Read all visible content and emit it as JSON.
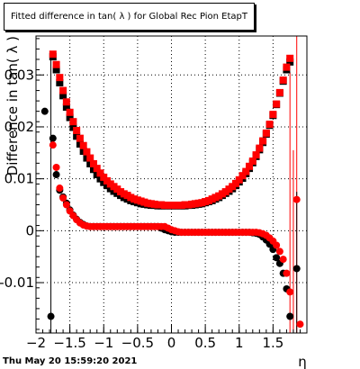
{
  "title": "Fitted difference in tan( λ ) for Global Rec Pion EtapT",
  "footer_date": "Thu May 20 15:59:20 2021",
  "chart_data": {
    "type": "scatter",
    "title": "Fitted difference in tan( λ ) for Global Rec Pion EtapT",
    "xlabel": "η",
    "ylabel": "Difference in tan( λ )",
    "xlim": [
      -2.0,
      2.0
    ],
    "ylim": [
      -0.0197,
      0.0375
    ],
    "xticks": [
      -2,
      -1.5,
      -1,
      -0.5,
      0,
      0.5,
      1,
      1.5
    ],
    "xtick_labels": [
      "−2",
      "−1.5",
      "−1",
      "−0.5",
      "0",
      "0.5",
      "1",
      "1.5"
    ],
    "yticks": [
      -0.01,
      0,
      0.01,
      0.02,
      0.03
    ],
    "ytick_labels": [
      "-0.01",
      "0",
      "0.01",
      "0.02",
      "0.03"
    ],
    "grid": true,
    "series": [
      {
        "marker": "square",
        "color": "#000000",
        "x": [
          -1.75,
          -1.7,
          -1.65,
          -1.6,
          -1.55,
          -1.5,
          -1.45,
          -1.4,
          -1.35,
          -1.3,
          -1.25,
          -1.2,
          -1.15,
          -1.1,
          -1.05,
          -1.0,
          -0.95,
          -0.9,
          -0.85,
          -0.8,
          -0.75,
          -0.7,
          -0.65,
          -0.6,
          -0.55,
          -0.5,
          -0.45,
          -0.4,
          -0.35,
          -0.3,
          -0.25,
          -0.2,
          -0.15,
          -0.1,
          -0.05,
          0.0,
          0.05,
          0.1,
          0.15,
          0.2,
          0.25,
          0.3,
          0.35,
          0.4,
          0.45,
          0.5,
          0.55,
          0.6,
          0.65,
          0.7,
          0.75,
          0.8,
          0.85,
          0.9,
          0.95,
          1.0,
          1.05,
          1.1,
          1.15,
          1.2,
          1.25,
          1.3,
          1.35,
          1.4,
          1.45,
          1.5,
          1.55,
          1.6,
          1.65,
          1.7,
          1.75
        ],
        "y": [
          0.0335,
          0.031,
          0.0285,
          0.026,
          0.0238,
          0.0218,
          0.0199,
          0.0182,
          0.0167,
          0.0153,
          0.014,
          0.0129,
          0.0118,
          0.0108,
          0.01,
          0.0093,
          0.0087,
          0.0081,
          0.0076,
          0.0072,
          0.0068,
          0.0064,
          0.0061,
          0.0058,
          0.0056,
          0.0054,
          0.0052,
          0.0051,
          0.005,
          0.0049,
          0.0049,
          0.0048,
          0.0048,
          0.0048,
          0.0048,
          0.0048,
          0.0048,
          0.0048,
          0.0048,
          0.0048,
          0.0049,
          0.0049,
          0.005,
          0.0051,
          0.0052,
          0.0054,
          0.0056,
          0.0058,
          0.0061,
          0.0064,
          0.0068,
          0.0072,
          0.0076,
          0.0081,
          0.0087,
          0.0094,
          0.0101,
          0.011,
          0.012,
          0.0131,
          0.0143,
          0.0156,
          0.017,
          0.0186,
          0.0203,
          0.0222,
          0.0243,
          0.0265,
          0.0288,
          0.031,
          0.0325
        ]
      },
      {
        "marker": "square",
        "color": "#ff0000",
        "x": [
          -1.75,
          -1.7,
          -1.65,
          -1.6,
          -1.55,
          -1.5,
          -1.45,
          -1.4,
          -1.35,
          -1.3,
          -1.25,
          -1.2,
          -1.15,
          -1.1,
          -1.05,
          -1.0,
          -0.95,
          -0.9,
          -0.85,
          -0.8,
          -0.75,
          -0.7,
          -0.65,
          -0.6,
          -0.55,
          -0.5,
          -0.45,
          -0.4,
          -0.35,
          -0.3,
          -0.25,
          -0.2,
          -0.15,
          -0.1,
          -0.05,
          0.0,
          0.05,
          0.1,
          0.15,
          0.2,
          0.25,
          0.3,
          0.35,
          0.4,
          0.45,
          0.5,
          0.55,
          0.6,
          0.65,
          0.7,
          0.75,
          0.8,
          0.85,
          0.9,
          0.95,
          1.0,
          1.05,
          1.1,
          1.15,
          1.2,
          1.25,
          1.3,
          1.35,
          1.4,
          1.45,
          1.5,
          1.55,
          1.6,
          1.65,
          1.7,
          1.75
        ],
        "y": [
          0.034,
          0.032,
          0.0295,
          0.027,
          0.0248,
          0.0228,
          0.021,
          0.0193,
          0.0178,
          0.0164,
          0.0152,
          0.014,
          0.0129,
          0.012,
          0.0111,
          0.0103,
          0.0096,
          0.009,
          0.0085,
          0.008,
          0.0075,
          0.0071,
          0.0068,
          0.0064,
          0.0061,
          0.0059,
          0.0057,
          0.0055,
          0.0053,
          0.0052,
          0.0051,
          0.005,
          0.005,
          0.0049,
          0.0049,
          0.0049,
          0.0049,
          0.0049,
          0.0049,
          0.005,
          0.005,
          0.0051,
          0.0052,
          0.0053,
          0.0054,
          0.0056,
          0.0058,
          0.0061,
          0.0064,
          0.0067,
          0.0071,
          0.0075,
          0.008,
          0.0085,
          0.0091,
          0.0098,
          0.0106,
          0.0114,
          0.0124,
          0.0134,
          0.0146,
          0.0159,
          0.0173,
          0.0188,
          0.0205,
          0.0224,
          0.0244,
          0.0266,
          0.029,
          0.0315,
          0.0332
        ]
      },
      {
        "marker": "circle",
        "color": "#000000",
        "x": [
          -1.87,
          -1.78,
          -1.75,
          -1.7,
          -1.65,
          -1.6,
          -1.55,
          -1.5,
          -1.45,
          -1.4,
          -1.35,
          -1.3,
          -1.25,
          -1.2,
          -1.15,
          -1.1,
          -1.05,
          -1.0,
          -0.95,
          -0.9,
          -0.85,
          -0.8,
          -0.75,
          -0.7,
          -0.65,
          -0.6,
          -0.55,
          -0.5,
          -0.45,
          -0.4,
          -0.35,
          -0.3,
          -0.25,
          -0.2,
          -0.15,
          -0.1,
          -0.05,
          0.0,
          0.05,
          0.1,
          0.15,
          0.2,
          0.25,
          0.3,
          0.35,
          0.4,
          0.45,
          0.5,
          0.55,
          0.6,
          0.65,
          0.7,
          0.75,
          0.8,
          0.85,
          0.9,
          0.95,
          1.0,
          1.05,
          1.1,
          1.15,
          1.2,
          1.25,
          1.3,
          1.35,
          1.4,
          1.45,
          1.5,
          1.55,
          1.6,
          1.65,
          1.7,
          1.75,
          1.85
        ],
        "y": [
          0.023,
          -0.0165,
          0.0178,
          0.0108,
          0.0078,
          0.0065,
          0.0053,
          0.004,
          0.003,
          0.0022,
          0.0016,
          0.0012,
          0.0009,
          0.0008,
          0.0008,
          0.0008,
          0.0008,
          0.0008,
          0.0008,
          0.0008,
          0.0008,
          0.0008,
          0.0008,
          0.0008,
          0.0008,
          0.0008,
          0.0008,
          0.0008,
          0.0008,
          0.0008,
          0.0008,
          0.0008,
          0.0008,
          0.0008,
          0.0005,
          0.0002,
          0.0,
          -0.0002,
          -0.0003,
          -0.0003,
          -0.0003,
          -0.0003,
          -0.0003,
          -0.0003,
          -0.0003,
          -0.0003,
          -0.0003,
          -0.0003,
          -0.0003,
          -0.0003,
          -0.0003,
          -0.0003,
          -0.0003,
          -0.0003,
          -0.0003,
          -0.0003,
          -0.0003,
          -0.0003,
          -0.0003,
          -0.0003,
          -0.0003,
          -0.0004,
          -0.0005,
          -0.0007,
          -0.0012,
          -0.0018,
          -0.0026,
          -0.0036,
          -0.0052,
          -0.0063,
          -0.0082,
          -0.0112,
          -0.0165,
          -0.0073
        ]
      },
      {
        "marker": "circle",
        "color": "#ff0000",
        "x": [
          -1.75,
          -1.7,
          -1.65,
          -1.6,
          -1.55,
          -1.5,
          -1.45,
          -1.4,
          -1.35,
          -1.3,
          -1.25,
          -1.2,
          -1.15,
          -1.1,
          -1.05,
          -1.0,
          -0.95,
          -0.9,
          -0.85,
          -0.8,
          -0.75,
          -0.7,
          -0.65,
          -0.6,
          -0.55,
          -0.5,
          -0.45,
          -0.4,
          -0.35,
          -0.3,
          -0.25,
          -0.2,
          -0.15,
          -0.1,
          -0.05,
          0.0,
          0.05,
          0.1,
          0.15,
          0.2,
          0.25,
          0.3,
          0.35,
          0.4,
          0.45,
          0.5,
          0.55,
          0.6,
          0.65,
          0.7,
          0.75,
          0.8,
          0.85,
          0.9,
          0.95,
          1.0,
          1.05,
          1.1,
          1.15,
          1.2,
          1.25,
          1.3,
          1.35,
          1.4,
          1.45,
          1.5,
          1.55,
          1.6,
          1.65,
          1.7,
          1.75,
          1.85,
          1.9
        ],
        "y": [
          0.0165,
          0.0122,
          0.0082,
          0.0063,
          0.005,
          0.0038,
          0.0029,
          0.0021,
          0.0015,
          0.0011,
          0.0009,
          0.0008,
          0.0008,
          0.0008,
          0.0008,
          0.0008,
          0.0008,
          0.0008,
          0.0008,
          0.0008,
          0.0008,
          0.0008,
          0.0008,
          0.0008,
          0.0008,
          0.0008,
          0.0008,
          0.0008,
          0.0008,
          0.0008,
          0.0008,
          0.0008,
          0.0008,
          0.0008,
          0.0005,
          0.0002,
          0.0,
          -0.0002,
          -0.0003,
          -0.0003,
          -0.0003,
          -0.0003,
          -0.0003,
          -0.0003,
          -0.0003,
          -0.0003,
          -0.0003,
          -0.0003,
          -0.0003,
          -0.0003,
          -0.0003,
          -0.0003,
          -0.0003,
          -0.0003,
          -0.0003,
          -0.0003,
          -0.0003,
          -0.0003,
          -0.0003,
          -0.0003,
          -0.0003,
          -0.0004,
          -0.0006,
          -0.0009,
          -0.0014,
          -0.002,
          -0.0028,
          -0.004,
          -0.0055,
          -0.0082,
          -0.0118,
          0.006,
          -0.018
        ]
      }
    ],
    "error_bars": [
      {
        "color": "#000000",
        "x": -1.78,
        "y_low": -0.0197,
        "y_high": 0.0345
      },
      {
        "color": "#ff0000",
        "x": 1.75,
        "y_low": -0.0197,
        "y_high": 0.0305
      },
      {
        "color": "#ff0000",
        "x": 1.8,
        "y_low": -0.0197,
        "y_high": 0.0155
      },
      {
        "color": "#ff0000",
        "x": 1.85,
        "y_low": -0.0197,
        "y_high": 0.0375
      },
      {
        "color": "#000000",
        "x": 1.85,
        "y_low": -0.0197,
        "y_high": 0.0075
      }
    ]
  }
}
